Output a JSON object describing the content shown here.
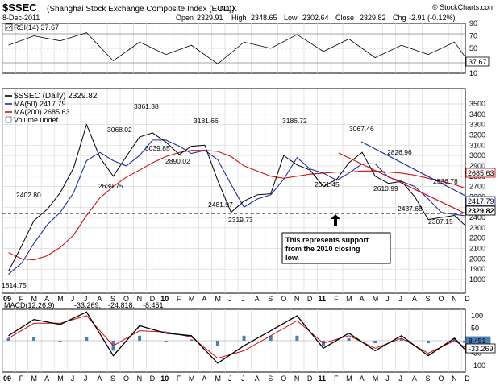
{
  "header": {
    "symbol": "$SSEC",
    "name": "(Shanghai Stock Exchange Composite Index (EOD))",
    "exchange": "INDX",
    "date": "8-Dec-2011",
    "watermark": "© StockCharts.com",
    "open_label": "Open",
    "open_value": "2329.91",
    "high_label": "High",
    "high_value": "2348.65",
    "low_label": "Low",
    "low_value": "2302.64",
    "close_label": "Close",
    "close_value": "2329.82",
    "chg_label": "Chg",
    "chg_value": "-2.91 (-0.12%)"
  },
  "rsi": {
    "legend": "RSI(14) 37.67",
    "ticks": [
      "90",
      "70",
      "50",
      "30",
      "10"
    ],
    "last_value": "37.67"
  },
  "price": {
    "legend": [
      {
        "text": "$SSEC (Daily) 2329.82",
        "color": "#000000",
        "icon": "black-line-icon"
      },
      {
        "text": "MA(50) 2417.79",
        "color": "#1f2fa0",
        "icon": "blue-line-icon"
      },
      {
        "text": "MA(200) 2685.63",
        "color": "#cc1111",
        "icon": "red-line-icon"
      },
      {
        "text": "Volume undef",
        "color": "#555555",
        "icon": "volume-box-icon"
      }
    ],
    "ticks": [
      "3500",
      "3400",
      "3300",
      "3200",
      "3100",
      "3000",
      "2900",
      "2800",
      "2700",
      "2600",
      "2500",
      "2400",
      "2300",
      "2200",
      "2100",
      "2000",
      "1900",
      "1800"
    ],
    "badges": [
      "2685.63",
      "2417.79",
      "2329.82"
    ],
    "annotations": [
      "3361.38",
      "3068.02",
      "3181.66",
      "3186.72",
      "3067.46",
      "3039.85",
      "2890.02",
      "2826.96",
      "2402.80",
      "2639.75",
      "2481.97",
      "2661.45",
      "2610.99",
      "2536.78",
      "2319.73",
      "2437.68",
      "2307.15",
      "1814.75"
    ],
    "callout": [
      "This represents support",
      "from the 2010 closing",
      "low."
    ]
  },
  "macd": {
    "legend_main": "MACD(12,26,9)",
    "legend_v1": "-33.269,",
    "legend_v2": "-24.818,",
    "legend_v3": "-8.451",
    "ticks": [
      "100",
      "50",
      "0",
      "-50",
      "-100"
    ],
    "badges": [
      "8.451",
      "-33.269"
    ]
  },
  "x_axis": {
    "labels": [
      "09",
      "F",
      "M",
      "A",
      "M",
      "J",
      "J",
      "A",
      "S",
      "O",
      "N",
      "D",
      "10",
      "F",
      "M",
      "A",
      "M",
      "J",
      "J",
      "A",
      "S",
      "O",
      "N",
      "D",
      "11",
      "F",
      "M",
      "A",
      "M",
      "J",
      "J",
      "A",
      "S",
      "O",
      "N",
      "D"
    ]
  },
  "colors": {
    "price": "#000000",
    "ma50": "#1f2fa0",
    "ma200": "#cc1111",
    "macd": "#000000",
    "signal": "#cc1111",
    "histogram": "#4a7fb5"
  },
  "chart_data": [
    {
      "type": "line",
      "title": "RSI(14) 37.67",
      "ylim": [
        10,
        90
      ],
      "x": [
        "2009-01",
        "2009-03",
        "2009-05",
        "2009-07",
        "2009-09",
        "2009-11",
        "2010-01",
        "2010-03",
        "2010-05",
        "2010-07",
        "2010-09",
        "2010-11",
        "2011-01",
        "2011-03",
        "2011-05",
        "2011-07",
        "2011-09",
        "2011-11",
        "2011-12-08"
      ],
      "series": [
        {
          "name": "RSI(14)",
          "values": [
            55,
            70,
            62,
            75,
            30,
            60,
            40,
            55,
            25,
            60,
            50,
            72,
            45,
            65,
            35,
            55,
            40,
            60,
            37.67
          ]
        }
      ]
    },
    {
      "type": "line",
      "title": "$SSEC (Daily) 2329.82",
      "ylim": [
        1700,
        3600
      ],
      "x": [
        "2009-01",
        "2009-02",
        "2009-03",
        "2009-04",
        "2009-05",
        "2009-06",
        "2009-07",
        "2009-08",
        "2009-09",
        "2009-10",
        "2009-11",
        "2009-12",
        "2010-01",
        "2010-02",
        "2010-03",
        "2010-04",
        "2010-05",
        "2010-06",
        "2010-07",
        "2010-08",
        "2010-09",
        "2010-10",
        "2010-11",
        "2010-12",
        "2011-01",
        "2011-02",
        "2011-03",
        "2011-04",
        "2011-05",
        "2011-06",
        "2011-07",
        "2011-08",
        "2011-09",
        "2011-10",
        "2011-11",
        "2011-12-08"
      ],
      "series": [
        {
          "name": "$SSEC (Daily)",
          "values": [
            1880,
            2130,
            2370,
            2480,
            2640,
            2880,
            3300,
            2980,
            2800,
            2990,
            3180,
            3220,
            3130,
            3010,
            3090,
            3100,
            2760,
            2450,
            2560,
            2620,
            2630,
            3000,
            2910,
            2860,
            2700,
            2770,
            2930,
            3030,
            2800,
            2730,
            2750,
            2600,
            2380,
            2400,
            2420,
            2329.82
          ]
        },
        {
          "name": "MA(50)",
          "values": [
            1850,
            1960,
            2150,
            2330,
            2450,
            2640,
            2950,
            3030,
            2950,
            2900,
            3000,
            3150,
            3150,
            3090,
            3020,
            3050,
            2960,
            2720,
            2500,
            2580,
            2620,
            2770,
            2980,
            2870,
            2830,
            2760,
            2830,
            2920,
            2920,
            2790,
            2750,
            2700,
            2580,
            2450,
            2430,
            2417.79
          ]
        },
        {
          "name": "MA(200)",
          "values": [
            2060,
            2000,
            1990,
            2030,
            2110,
            2230,
            2420,
            2590,
            2700,
            2790,
            2860,
            2930,
            2990,
            3030,
            3050,
            3050,
            3040,
            2990,
            2900,
            2850,
            2800,
            2780,
            2800,
            2820,
            2830,
            2840,
            2840,
            2850,
            2850,
            2840,
            2830,
            2810,
            2780,
            2750,
            2720,
            2685.63
          ]
        }
      ]
    },
    {
      "type": "line",
      "title": "MACD(12,26,9) -33.269, -24.818, -8.451",
      "ylim": [
        -120,
        130
      ],
      "x": [
        "2009-01",
        "2009-03",
        "2009-05",
        "2009-07",
        "2009-09",
        "2009-11",
        "2010-01",
        "2010-03",
        "2010-05",
        "2010-07",
        "2010-09",
        "2010-11",
        "2011-01",
        "2011-03",
        "2011-05",
        "2011-07",
        "2011-09",
        "2011-11",
        "2011-12-08"
      ],
      "series": [
        {
          "name": "MACD(12,26,9)",
          "values": [
            20,
            85,
            65,
            115,
            -60,
            60,
            30,
            20,
            -90,
            -20,
            40,
            100,
            -30,
            30,
            -40,
            20,
            -60,
            10,
            -33.269
          ]
        },
        {
          "name": "Signal",
          "values": [
            10,
            70,
            70,
            100,
            -20,
            40,
            35,
            15,
            -70,
            -40,
            20,
            80,
            -10,
            20,
            -30,
            10,
            -50,
            0,
            -24.818
          ]
        }
      ]
    }
  ]
}
